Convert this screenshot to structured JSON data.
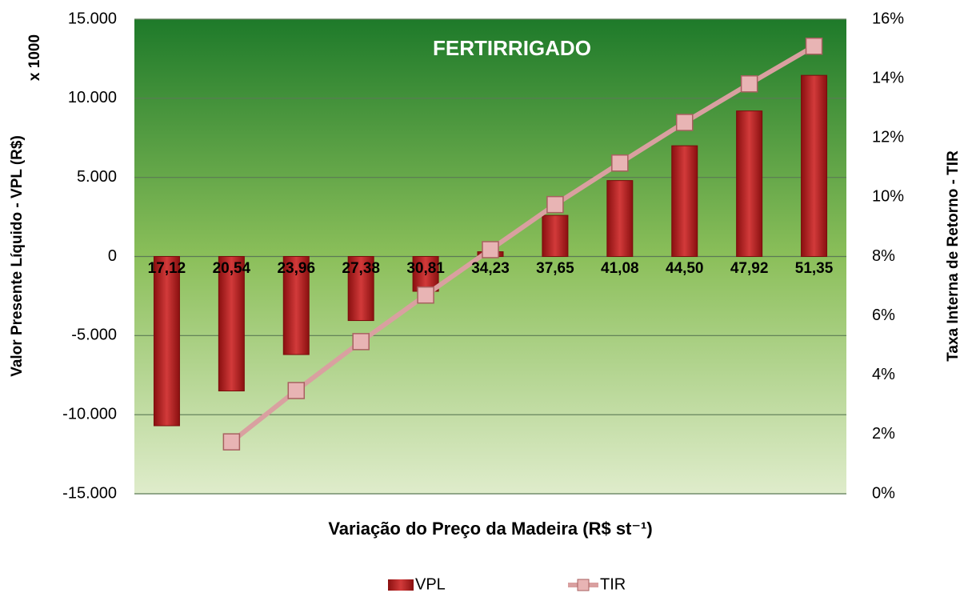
{
  "chart_data": {
    "type": "bar_line",
    "title": "FERTIRRIGADO",
    "y_unit_note": "x 1000",
    "ylabel": "Valor Presente Líquido - VPL (R$)",
    "y2label": "Taxa Interna de Retorno - TIR",
    "xlabel": "Variação do Preço da Madeira (R$ st⁻¹)",
    "categories": [
      "17,12",
      "20,54",
      "23,96",
      "27,38",
      "30,81",
      "34,23",
      "37,65",
      "41,08",
      "44,50",
      "47,92",
      "51,35"
    ],
    "series": [
      {
        "name": "VPL",
        "type": "bar",
        "color": "#b22222",
        "values": [
          -10700,
          -8500,
          -6200,
          -4050,
          -2200,
          300,
          2600,
          4800,
          7000,
          9200,
          11450
        ]
      },
      {
        "name": "TIR",
        "type": "line",
        "axis": "y2",
        "color": "#d9a0a0",
        "values": [
          null,
          1.75,
          3.48,
          5.13,
          6.7,
          8.23,
          9.75,
          11.15,
          12.52,
          13.82,
          15.09
        ]
      }
    ],
    "ylim": [
      -15000,
      15000
    ],
    "yticks": [
      {
        "value": -15000,
        "label": "-15.000"
      },
      {
        "value": -10000,
        "label": "-10.000"
      },
      {
        "value": -5000,
        "label": "-5.000"
      },
      0,
      {
        "value": 5000,
        "label": "5.000"
      },
      {
        "value": 10000,
        "label": "10.000"
      },
      {
        "value": 15000,
        "label": "15.000"
      }
    ],
    "y2lim": [
      0,
      16
    ],
    "y2ticks": [
      {
        "value": 0,
        "label": "0%"
      },
      {
        "value": 2,
        "label": "2%"
      },
      {
        "value": 4,
        "label": "4%"
      },
      {
        "value": 6,
        "label": "6%"
      },
      {
        "value": 8,
        "label": "8%"
      },
      {
        "value": 10,
        "label": "10%"
      },
      {
        "value": 12,
        "label": "12%"
      },
      {
        "value": 14,
        "label": "14%"
      },
      {
        "value": 16,
        "label": "16%"
      }
    ],
    "grid": true,
    "legend": "bottom"
  }
}
